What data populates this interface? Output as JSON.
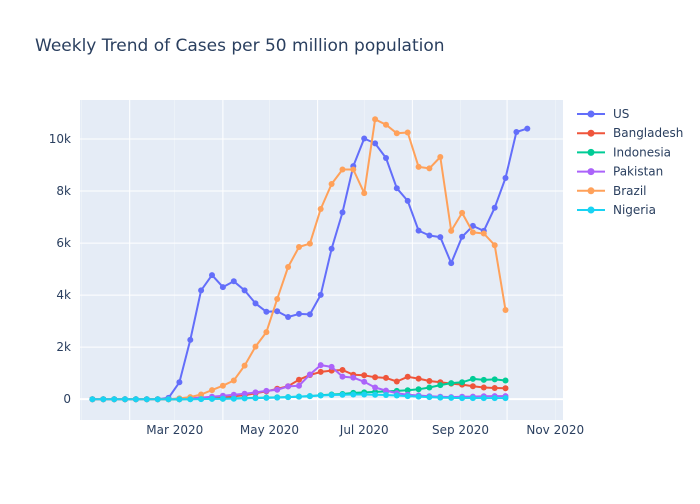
{
  "chart_data": {
    "type": "line",
    "title": "Weekly Trend of Cases per 50 million population",
    "xlabel": "",
    "ylabel": "",
    "x_ticks": [
      "Mar 2020",
      "May 2020",
      "Jul 2020",
      "Sep 2020",
      "Nov 2020"
    ],
    "y_ticks": [
      "0",
      "2k",
      "4k",
      "6k",
      "8k",
      "10k"
    ],
    "ylim": [
      -800,
      11500
    ],
    "grid": true,
    "legend_position": "top-right",
    "x_start": "2020-01-08",
    "x_step_days": 7,
    "x_range": [
      "2019-12-31",
      "2020-11-06"
    ],
    "series": [
      {
        "name": "US",
        "color": "#636efa",
        "values": [
          0,
          0,
          0,
          0,
          0,
          0,
          0,
          50,
          650,
          2280,
          4180,
          4770,
          4310,
          4530,
          4180,
          3680,
          3360,
          3380,
          3160,
          3280,
          3260,
          4010,
          5780,
          7180,
          8960,
          10020,
          9830,
          9270,
          8110,
          7620,
          6480,
          6290,
          6230,
          5230,
          6240,
          6660,
          6470,
          7360,
          8500,
          10270,
          10400
        ]
      },
      {
        "name": "Bangladesh",
        "color": "#ef553b",
        "values": [
          0,
          0,
          0,
          0,
          0,
          0,
          0,
          0,
          0,
          10,
          20,
          40,
          80,
          110,
          150,
          230,
          300,
          400,
          500,
          750,
          930,
          1050,
          1100,
          1120,
          940,
          920,
          840,
          820,
          680,
          860,
          790,
          700,
          650,
          600,
          560,
          500,
          450,
          430,
          420
        ]
      },
      {
        "name": "Indonesia",
        "color": "#00cc96",
        "values": [
          0,
          0,
          0,
          0,
          0,
          0,
          0,
          0,
          0,
          5,
          10,
          15,
          20,
          30,
          40,
          50,
          60,
          70,
          80,
          100,
          120,
          150,
          180,
          200,
          240,
          260,
          280,
          300,
          320,
          340,
          380,
          450,
          540,
          620,
          650,
          780,
          740,
          760,
          720
        ]
      },
      {
        "name": "Pakistan",
        "color": "#ab63fa",
        "values": [
          0,
          0,
          0,
          0,
          0,
          0,
          0,
          5,
          20,
          40,
          60,
          90,
          130,
          170,
          210,
          260,
          320,
          360,
          490,
          520,
          950,
          1310,
          1240,
          870,
          830,
          670,
          450,
          330,
          230,
          170,
          140,
          110,
          90,
          80,
          90,
          100,
          110,
          120,
          120
        ]
      },
      {
        "name": "Brazil",
        "color": "#ffa15a",
        "values": [
          0,
          0,
          0,
          0,
          0,
          0,
          0,
          0,
          30,
          80,
          180,
          350,
          520,
          720,
          1290,
          2020,
          2580,
          3850,
          5080,
          5850,
          5980,
          7310,
          8270,
          8830,
          8830,
          7920,
          10760,
          10550,
          10220,
          10250,
          8930,
          8870,
          9310,
          6470,
          7160,
          6410,
          6370,
          5920,
          3430
        ]
      },
      {
        "name": "Nigeria",
        "color": "#19d3f3",
        "values": [
          0,
          0,
          0,
          0,
          0,
          0,
          0,
          0,
          0,
          0,
          5,
          10,
          15,
          20,
          30,
          40,
          50,
          60,
          80,
          100,
          120,
          140,
          160,
          170,
          180,
          180,
          170,
          160,
          140,
          120,
          100,
          80,
          60,
          50,
          40,
          40,
          40,
          40,
          40
        ]
      }
    ]
  }
}
